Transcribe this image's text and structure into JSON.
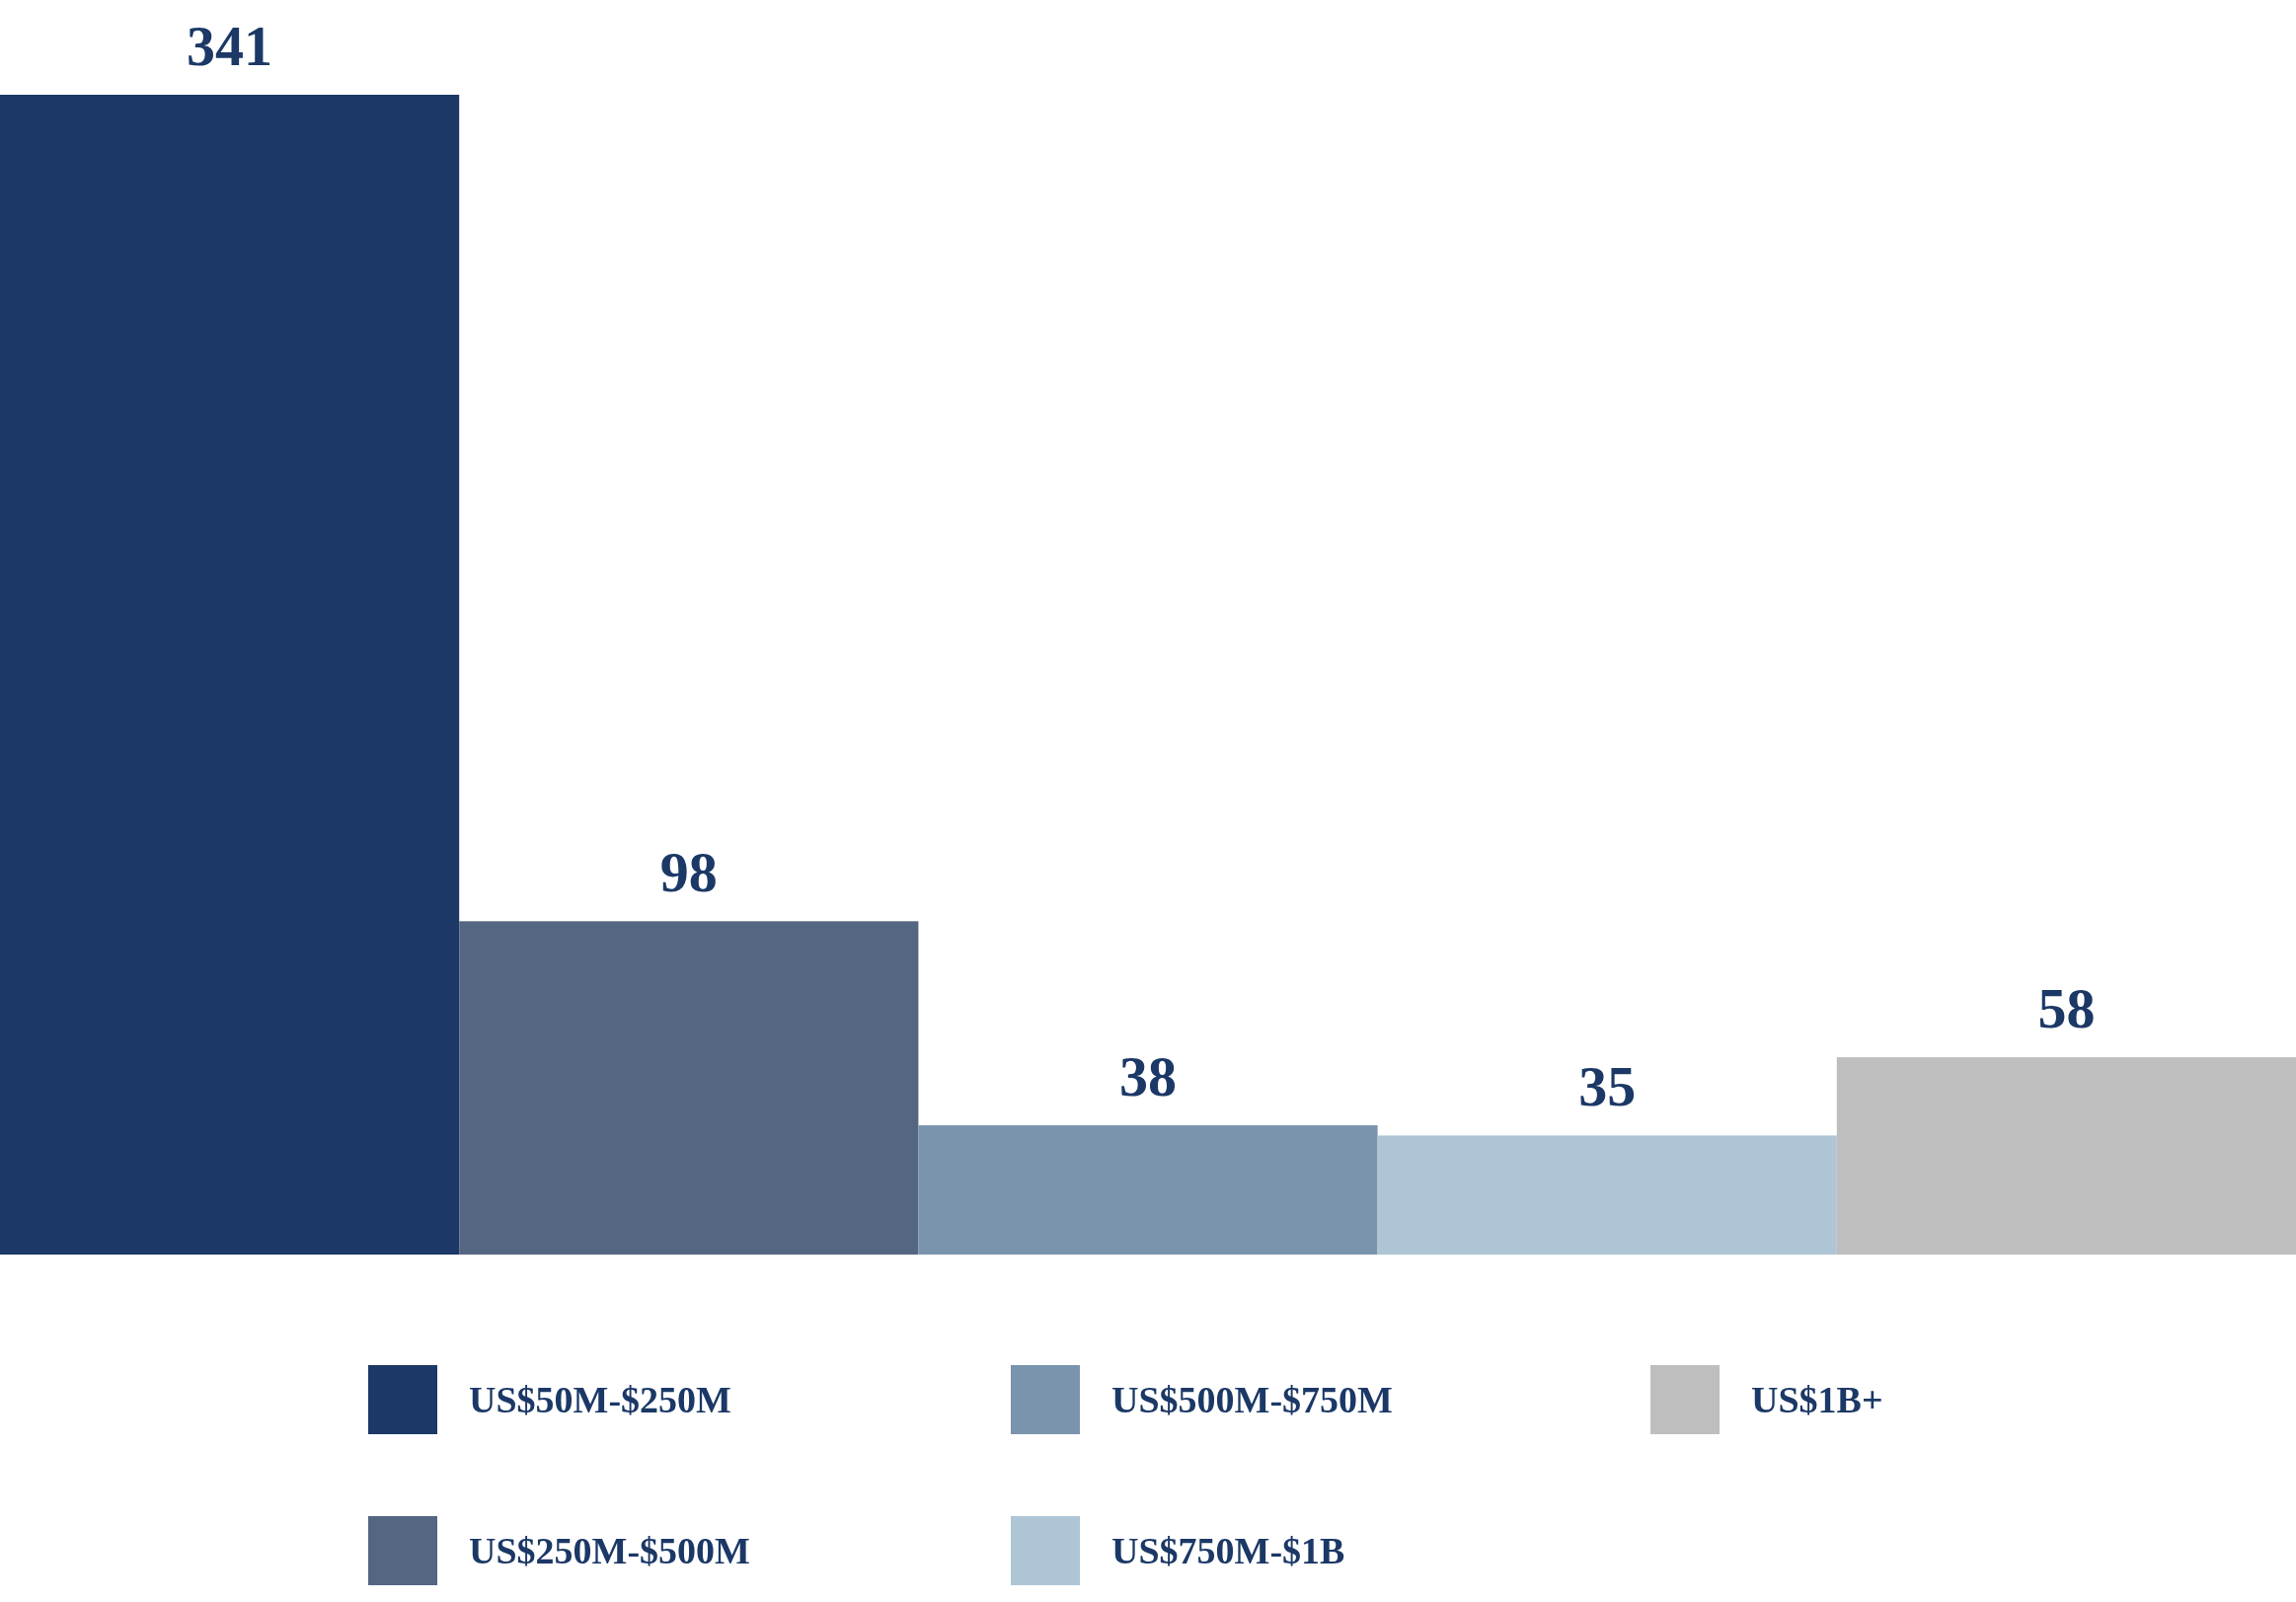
{
  "chart_data": {
    "type": "bar",
    "categories": [
      null
    ],
    "data_labels": true,
    "legend": "bottom",
    "series": [
      {
        "name": "US$50M-$250M",
        "color": "#1b3866",
        "values": [
          341
        ]
      },
      {
        "name": "US$250M-$500M",
        "color": "#546681",
        "values": [
          98
        ]
      },
      {
        "name": "US$500M-$750M",
        "color": "#7b94ad",
        "values": [
          38
        ]
      },
      {
        "name": "US$750M-$1B",
        "color": "#aec5d5",
        "values": [
          35
        ]
      },
      {
        "name": "US$1B+",
        "color": "#bebebe",
        "values": [
          58
        ]
      }
    ]
  }
}
